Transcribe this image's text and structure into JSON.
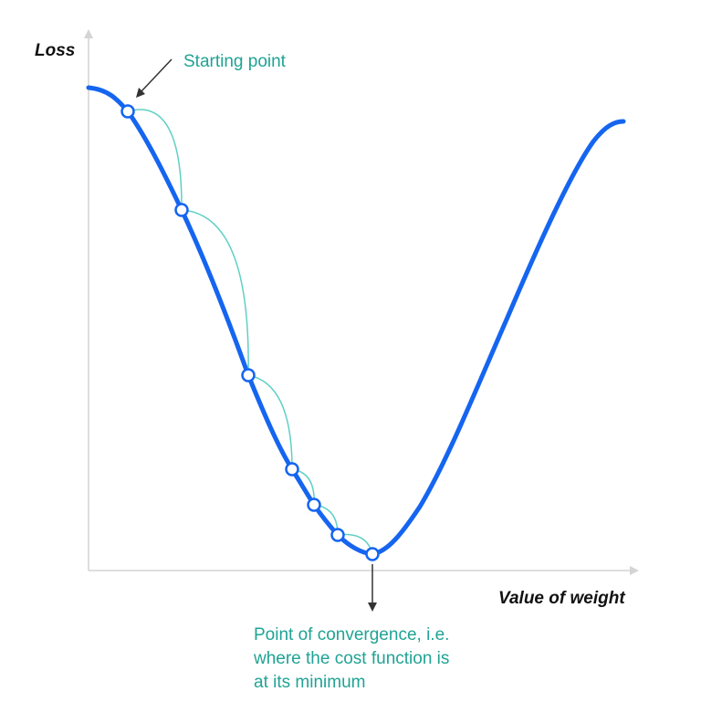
{
  "diagram": {
    "y_axis_label": "Loss",
    "x_axis_label": "Value of weight",
    "start_annotation": "Starting point",
    "convergence_annotation": [
      "Point of convergence, i.e.",
      "where the cost function is",
      "at its minimum"
    ],
    "steps_count_shown": 7
  },
  "colors": {
    "curve": "#1565f0",
    "step_arc": "#5fd0c4",
    "annotation_text": "#1fa394",
    "axis": "#d4d4d4",
    "arrow": "#333333",
    "point_fill": "#ffffff"
  }
}
